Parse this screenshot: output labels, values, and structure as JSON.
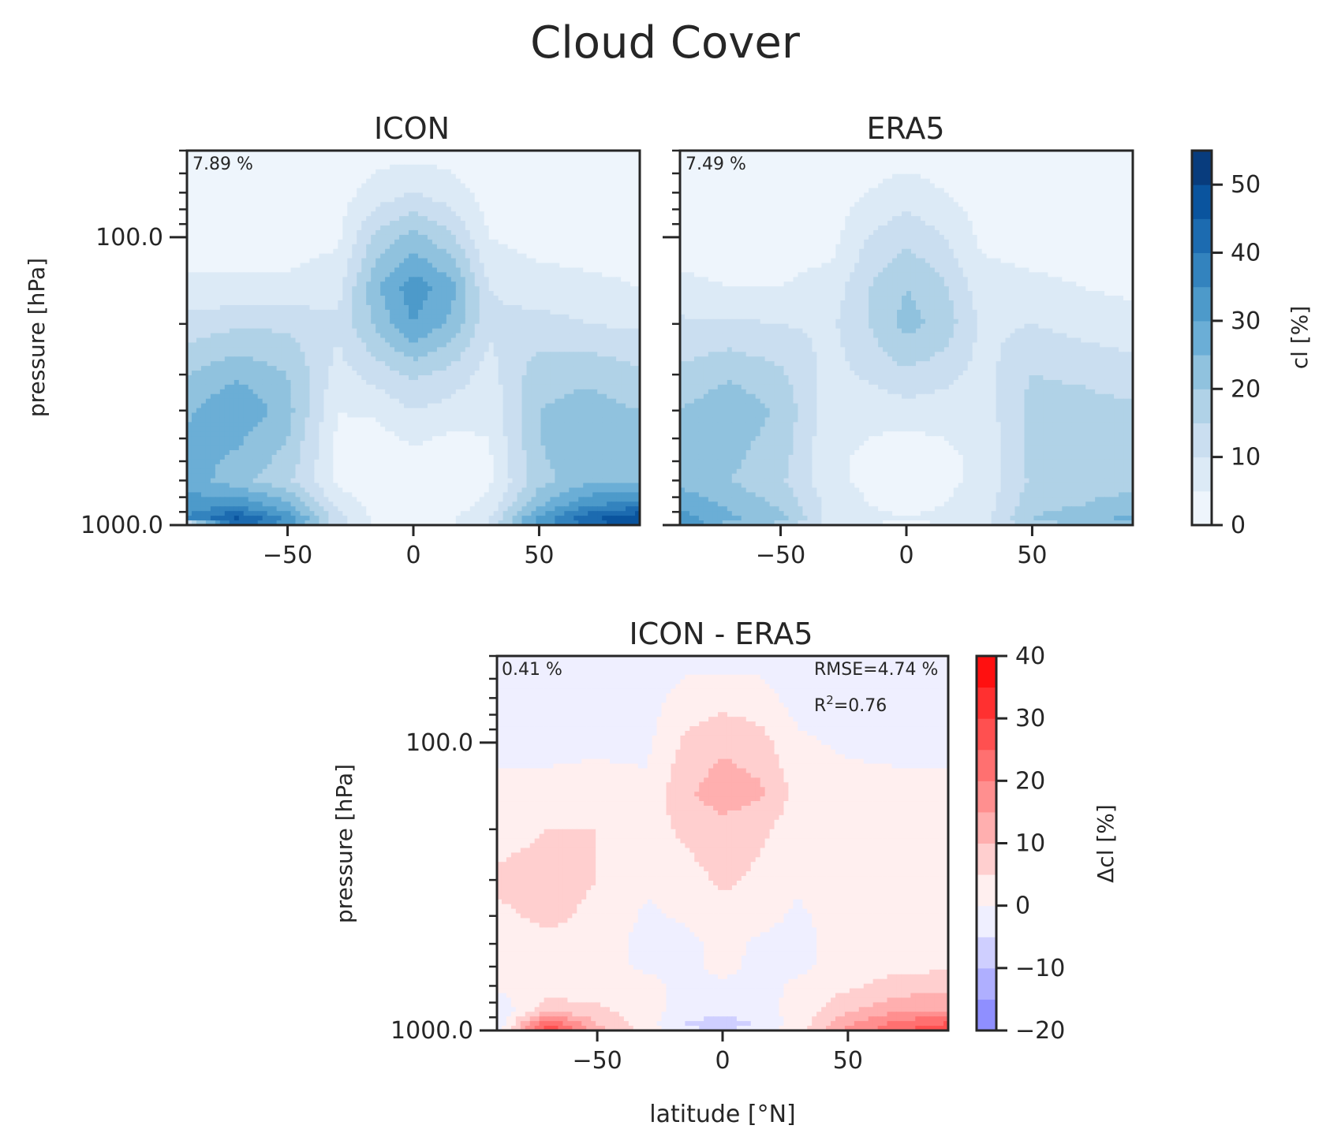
{
  "figure": {
    "title": "Cloud Cover"
  },
  "chart_data": [
    {
      "type": "heatmap",
      "id": "icon",
      "title": "ICON",
      "annotation": "7.89 %",
      "ylabel": "pressure [hPa]",
      "xlabel": "",
      "x_ticks": [
        -50,
        0,
        50
      ],
      "x_tick_labels": [
        "−50",
        "0",
        "50"
      ],
      "y_tick_labels": [
        "100.0",
        "1000.0"
      ],
      "y_scale": "log",
      "xlim": [
        -90,
        90
      ],
      "ylim": [
        1000,
        50
      ],
      "colormap": "Blues",
      "levels": [
        0,
        5,
        10,
        15,
        20,
        25,
        30,
        35,
        40,
        45,
        50,
        55
      ],
      "x": [
        -90,
        -70,
        -50,
        -30,
        -15,
        0,
        15,
        30,
        50,
        70,
        90
      ],
      "y": [
        50,
        70,
        100,
        150,
        200,
        300,
        400,
        500,
        600,
        700,
        850,
        950,
        1000
      ],
      "z": [
        [
          3,
          3,
          3,
          3,
          3,
          3,
          3,
          3,
          3,
          3,
          3
        ],
        [
          3,
          3,
          3,
          3,
          7,
          10,
          7,
          3,
          3,
          3,
          3
        ],
        [
          3,
          3,
          3,
          4,
          16,
          22,
          16,
          5,
          3,
          3,
          3
        ],
        [
          6,
          6,
          6,
          8,
          24,
          33,
          27,
          10,
          7,
          6,
          5
        ],
        [
          12,
          14,
          14,
          11,
          21,
          30,
          24,
          11,
          12,
          10,
          9
        ],
        [
          20,
          24,
          20,
          8,
          12,
          16,
          13,
          8,
          18,
          19,
          16
        ],
        [
          24,
          30,
          22,
          5,
          6,
          10,
          8,
          6,
          20,
          22,
          20
        ],
        [
          26,
          26,
          20,
          4,
          3,
          6,
          4,
          5,
          20,
          24,
          22
        ],
        [
          27,
          24,
          18,
          4,
          2,
          3,
          2,
          4,
          19,
          24,
          22
        ],
        [
          28,
          22,
          16,
          4,
          2,
          2,
          2,
          4,
          18,
          24,
          24
        ],
        [
          32,
          34,
          26,
          8,
          3,
          2,
          3,
          6,
          24,
          34,
          38
        ],
        [
          36,
          46,
          34,
          12,
          4,
          3,
          4,
          10,
          32,
          44,
          50
        ],
        [
          0,
          44,
          32,
          12,
          4,
          3,
          4,
          10,
          32,
          42,
          48
        ]
      ]
    },
    {
      "type": "heatmap",
      "id": "era5",
      "title": "ERA5",
      "annotation": "7.49 %",
      "ylabel": "",
      "xlabel": "",
      "x_ticks": [
        -50,
        0,
        50
      ],
      "x_tick_labels": [
        "−50",
        "0",
        "50"
      ],
      "y_scale": "log",
      "xlim": [
        -90,
        90
      ],
      "ylim": [
        1000,
        50
      ],
      "colormap": "Blues",
      "levels": [
        0,
        5,
        10,
        15,
        20,
        25,
        30,
        35,
        40,
        45,
        50,
        55
      ],
      "x": [
        -90,
        -70,
        -50,
        -30,
        -15,
        0,
        15,
        30,
        50,
        70,
        90
      ],
      "y": [
        50,
        70,
        100,
        150,
        200,
        300,
        400,
        500,
        600,
        700,
        850,
        950,
        1000
      ],
      "z": [
        [
          3,
          3,
          3,
          3,
          3,
          3,
          3,
          3,
          3,
          3,
          3
        ],
        [
          3,
          3,
          3,
          3,
          5,
          7,
          5,
          3,
          3,
          3,
          3
        ],
        [
          3,
          3,
          3,
          3,
          10,
          14,
          10,
          4,
          3,
          3,
          3
        ],
        [
          6,
          5,
          5,
          7,
          15,
          20,
          16,
          7,
          6,
          5,
          4
        ],
        [
          11,
          11,
          10,
          9,
          15,
          22,
          18,
          9,
          10,
          8,
          7
        ],
        [
          16,
          19,
          16,
          8,
          11,
          14,
          12,
          8,
          15,
          14,
          12
        ],
        [
          20,
          24,
          19,
          7,
          6,
          8,
          7,
          7,
          17,
          17,
          16
        ],
        [
          22,
          22,
          18,
          6,
          5,
          4,
          5,
          6,
          17,
          18,
          18
        ],
        [
          23,
          21,
          17,
          6,
          4,
          3,
          4,
          6,
          17,
          18,
          18
        ],
        [
          24,
          20,
          16,
          6,
          4,
          4,
          4,
          6,
          16,
          18,
          18
        ],
        [
          28,
          24,
          19,
          8,
          5,
          4,
          5,
          7,
          18,
          20,
          22
        ],
        [
          33,
          26,
          22,
          8,
          6,
          5,
          6,
          8,
          20,
          24,
          26
        ],
        [
          36,
          22,
          18,
          7,
          5,
          4,
          5,
          7,
          18,
          20,
          22
        ]
      ]
    },
    {
      "type": "heatmap",
      "id": "diff",
      "title": "ICON - ERA5",
      "annotation": "0.41 %",
      "rmse_label": "RMSE=4.74 %",
      "r2_label": "R",
      "r2_sup": "2",
      "r2_value": "=0.76",
      "ylabel": "pressure [hPa]",
      "xlabel": "latitude [°N]",
      "x_ticks": [
        -50,
        0,
        50
      ],
      "x_tick_labels": [
        "−50",
        "0",
        "50"
      ],
      "y_tick_labels": [
        "100.0",
        "1000.0"
      ],
      "y_scale": "log",
      "xlim": [
        -90,
        90
      ],
      "ylim": [
        1000,
        50
      ],
      "colormap": "bwr",
      "levels": [
        -20,
        -15,
        -10,
        -5,
        0,
        5,
        10,
        15,
        20,
        25,
        30,
        35,
        40
      ],
      "x": [
        -90,
        -70,
        -50,
        -30,
        -15,
        0,
        15,
        30,
        50,
        70,
        90
      ],
      "y": [
        50,
        70,
        100,
        150,
        200,
        300,
        400,
        500,
        600,
        700,
        850,
        950,
        1000
      ],
      "z": [
        [
          -2,
          -2,
          -2,
          -2,
          -2,
          -2,
          -2,
          -2,
          -2,
          -2,
          -2
        ],
        [
          -2,
          -2,
          -2,
          -2,
          2,
          3,
          2,
          -2,
          -2,
          -2,
          -2
        ],
        [
          -1,
          -1,
          -1,
          -1,
          6,
          9,
          7,
          1,
          -1,
          -1,
          -1
        ],
        [
          1,
          1,
          2,
          1,
          9,
          13,
          11,
          3,
          2,
          1,
          1
        ],
        [
          3,
          5,
          5,
          3,
          6,
          8,
          6,
          2,
          3,
          2,
          1
        ],
        [
          6,
          7,
          5,
          1,
          3,
          6,
          4,
          1,
          4,
          4,
          3
        ],
        [
          4,
          6,
          4,
          -1,
          1,
          3,
          2,
          -1,
          3,
          4,
          3
        ],
        [
          3,
          4,
          3,
          -2,
          -2,
          2,
          -1,
          -2,
          3,
          3,
          2
        ],
        [
          2,
          3,
          2,
          -1,
          -2,
          2,
          -2,
          -1,
          2,
          4,
          4
        ],
        [
          1,
          2,
          2,
          2,
          -2,
          -1,
          -2,
          1,
          4,
          7,
          8
        ],
        [
          -4,
          8,
          6,
          2,
          -2,
          -3,
          -2,
          2,
          9,
          14,
          15
        ],
        [
          -5,
          26,
          10,
          2,
          -5,
          -8,
          -4,
          2,
          14,
          22,
          26
        ],
        [
          -4,
          30,
          12,
          3,
          -4,
          -5,
          -3,
          3,
          16,
          24,
          30
        ]
      ]
    }
  ],
  "colorbars": [
    {
      "id": "cb-cl",
      "label": "cl [%]",
      "tick_labels": [
        "0",
        "10",
        "20",
        "30",
        "40",
        "50"
      ],
      "ticks": [
        0,
        10,
        20,
        30,
        40,
        50
      ],
      "range": [
        0,
        55
      ]
    },
    {
      "id": "cb-dcl",
      "label": "Δcl [%]",
      "tick_labels": [
        "−20",
        "−10",
        "0",
        "10",
        "20",
        "30",
        "40"
      ],
      "ticks": [
        -20,
        -10,
        0,
        10,
        20,
        30,
        40
      ],
      "range": [
        -20,
        40
      ]
    }
  ]
}
